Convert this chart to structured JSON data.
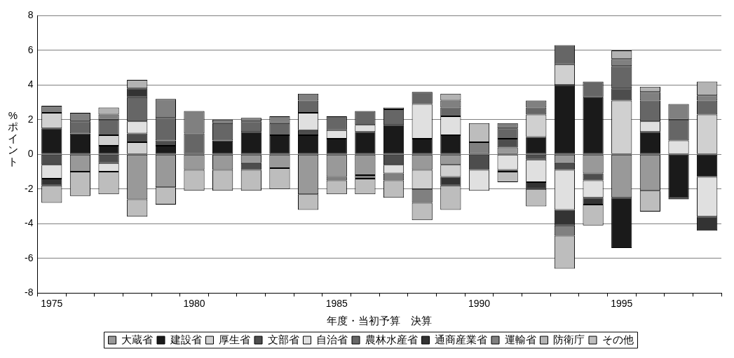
{
  "chart_data": {
    "type": "bar",
    "stacked": true,
    "xlabel": "年度・当初予算　決算",
    "ylabel": "%ポイント",
    "categories": [
      "1975",
      null,
      null,
      null,
      null,
      "1980",
      null,
      null,
      null,
      null,
      "1985",
      null,
      null,
      null,
      null,
      "1990",
      null,
      null,
      null,
      null,
      "1995",
      null,
      null,
      null
    ],
    "ylim": [
      -8,
      8
    ],
    "yticks": [
      -8,
      -6,
      -4,
      -2,
      0,
      2,
      4,
      6,
      8
    ],
    "grid": "y",
    "legend": "bottom",
    "series": [
      {
        "name": "大蔵省",
        "color": "#999999",
        "values": [
          0,
          -1,
          0,
          -2.6,
          -1.9,
          -0.9,
          -0.9,
          -0.5,
          -0.8,
          -2.3,
          -1.3,
          -1.2,
          0,
          -0.9,
          -0.6,
          0,
          0.4,
          0,
          -0.5,
          -1.1,
          -2.5,
          -2.1,
          0,
          0
        ]
      },
      {
        "name": "建設省",
        "color": "#1a1a1a",
        "values": [
          1.5,
          1.2,
          0.5,
          0,
          0.5,
          0,
          0.8,
          1.3,
          1.1,
          1.1,
          0.9,
          1.3,
          1.7,
          0.9,
          1.1,
          0,
          0,
          1,
          4,
          3.3,
          -2.9,
          1.3,
          -2.5,
          -1.3
        ]
      },
      {
        "name": "厚生省",
        "color": "#d0d0d0",
        "values": [
          0.9,
          0,
          0.6,
          0.7,
          0,
          0,
          0,
          0,
          0,
          0,
          0,
          0,
          0,
          -1.1,
          -0.7,
          0,
          0,
          1.3,
          1.2,
          0,
          3.1,
          0,
          0,
          2.3
        ]
      },
      {
        "name": "文部省",
        "color": "#4d4d4d",
        "values": [
          -0.6,
          0,
          -0.5,
          0.5,
          0.3,
          0,
          0,
          -0.4,
          0,
          0.3,
          0,
          0,
          -0.6,
          0,
          0,
          -0.9,
          0.5,
          -0.3,
          -0.4,
          -0.4,
          0.7,
          0,
          0,
          0
        ]
      },
      {
        "name": "自治省",
        "color": "#e0e0e0",
        "values": [
          -0.8,
          0,
          -0.5,
          0.7,
          0,
          0,
          0,
          0,
          0,
          1,
          0.5,
          0.4,
          -0.5,
          2,
          1.1,
          -1.2,
          -0.9,
          -1.3,
          -2.3,
          -1,
          0,
          0.6,
          0.8,
          -2.3
        ]
      },
      {
        "name": "農林水産省",
        "color": "#666666",
        "values": [
          0,
          0.7,
          0.9,
          1.4,
          1.3,
          1.2,
          1,
          0.6,
          0.7,
          0.7,
          0.8,
          0.8,
          0.9,
          0.7,
          0.5,
          0,
          0.6,
          0.4,
          1.1,
          0.9,
          1.3,
          1.2,
          1.2,
          0.8
        ]
      },
      {
        "name": "通商産業省",
        "color": "#333333",
        "values": [
          -0.4,
          0,
          0,
          0.5,
          0,
          0,
          0,
          0,
          0,
          0,
          0,
          0,
          0,
          0,
          -0.5,
          0,
          -0.1,
          -0.4,
          -0.9,
          -0.4,
          0,
          0,
          -0.1,
          -0.8
        ]
      },
      {
        "name": "運輸省",
        "color": "#808080",
        "values": [
          0.4,
          0.5,
          0.3,
          0,
          1.1,
          1.3,
          0.2,
          0.2,
          0.4,
          0.4,
          -0.2,
          -0.2,
          -0.4,
          -0.8,
          0.4,
          0.7,
          0.3,
          0.4,
          -0.6,
          0,
          0.4,
          0.5,
          0.9,
          0.3
        ]
      },
      {
        "name": "防衛庁",
        "color": "#b3b3b3",
        "values": [
          0,
          0,
          0.4,
          0.5,
          0,
          0,
          0,
          0,
          0,
          0,
          0,
          0,
          0.1,
          0,
          0.4,
          0,
          0,
          0,
          0,
          0,
          0.5,
          0.3,
          0,
          0.8
        ]
      },
      {
        "name": "その他",
        "color": "#bdbdbd",
        "values": [
          -1,
          -1.4,
          -1.3,
          -1,
          -1,
          -1.2,
          -1.2,
          -1.2,
          -1.2,
          -0.9,
          -0.8,
          -0.9,
          -1,
          -1,
          -1.4,
          1.1,
          -0.6,
          -1,
          -1.9,
          -1.2,
          0,
          -1.2,
          0,
          0
        ]
      }
    ]
  }
}
